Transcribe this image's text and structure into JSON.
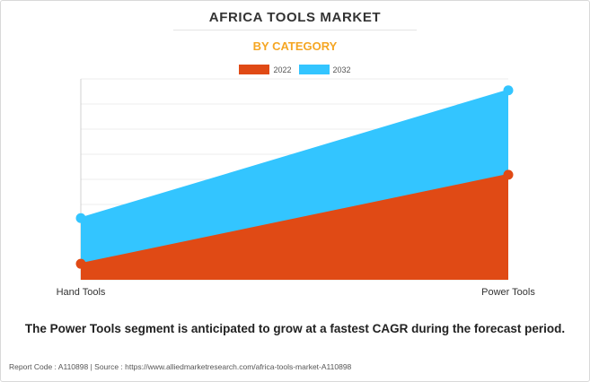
{
  "header": {
    "title": "AFRICA TOOLS MARKET",
    "subtitle": "BY CATEGORY"
  },
  "colors": {
    "series_2022": "#e04a15",
    "series_2032": "#33c5ff",
    "subtitle": "#f5a623"
  },
  "chart_data": {
    "type": "area",
    "categories": [
      "Hand Tools",
      "Power Tools"
    ],
    "series": [
      {
        "name": "2022",
        "values": [
          7,
          46
        ]
      },
      {
        "name": "2032",
        "values": [
          27,
          83
        ]
      }
    ],
    "ylim": [
      0,
      88
    ],
    "grid": true,
    "legend": "top-center",
    "stacked": false
  },
  "caption": "The Power Tools segment is anticipated to grow at a fastest CAGR during the forecast period.",
  "footer": "Report Code : A110898  |  Source : https://www.alliedmarketresearch.com/africa-tools-market-A110898"
}
